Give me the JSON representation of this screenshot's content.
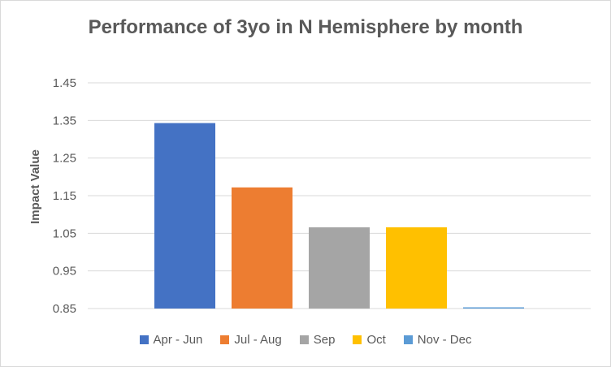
{
  "chart_data": {
    "type": "bar",
    "title": "Performance of 3yo in N Hemisphere by month",
    "xlabel": "",
    "ylabel": "Impact Value",
    "ylim": [
      0.85,
      1.45
    ],
    "yticks": [
      "1.45",
      "1.35",
      "1.25",
      "1.15",
      "1.05",
      "0.95",
      "0.85"
    ],
    "grid": true,
    "legend_position": "bottom",
    "categories": [
      "Apr - Jun",
      "Jul - Aug",
      "Sep",
      "Oct",
      "Nov - Dec"
    ],
    "values": [
      1.343,
      1.172,
      1.066,
      1.066,
      0.853
    ],
    "colors": [
      "#4472C4",
      "#ED7D31",
      "#A5A5A5",
      "#FFC000",
      "#5B9BD5"
    ]
  }
}
